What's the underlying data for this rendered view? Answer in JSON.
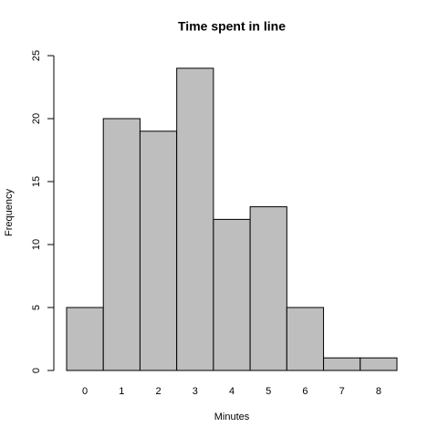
{
  "chart_data": {
    "type": "bar",
    "title": "Time spent in line",
    "x_label": "Minutes",
    "y_label": "Frequency",
    "categories": [
      "0",
      "1",
      "2",
      "3",
      "4",
      "5",
      "6",
      "7",
      "8"
    ],
    "values": [
      5,
      20,
      19,
      24,
      12,
      13,
      5,
      1,
      1
    ],
    "color": "#bebebe",
    "ylim": [
      0,
      25
    ],
    "yticks": [
      0,
      5,
      10,
      15,
      20,
      25
    ]
  }
}
